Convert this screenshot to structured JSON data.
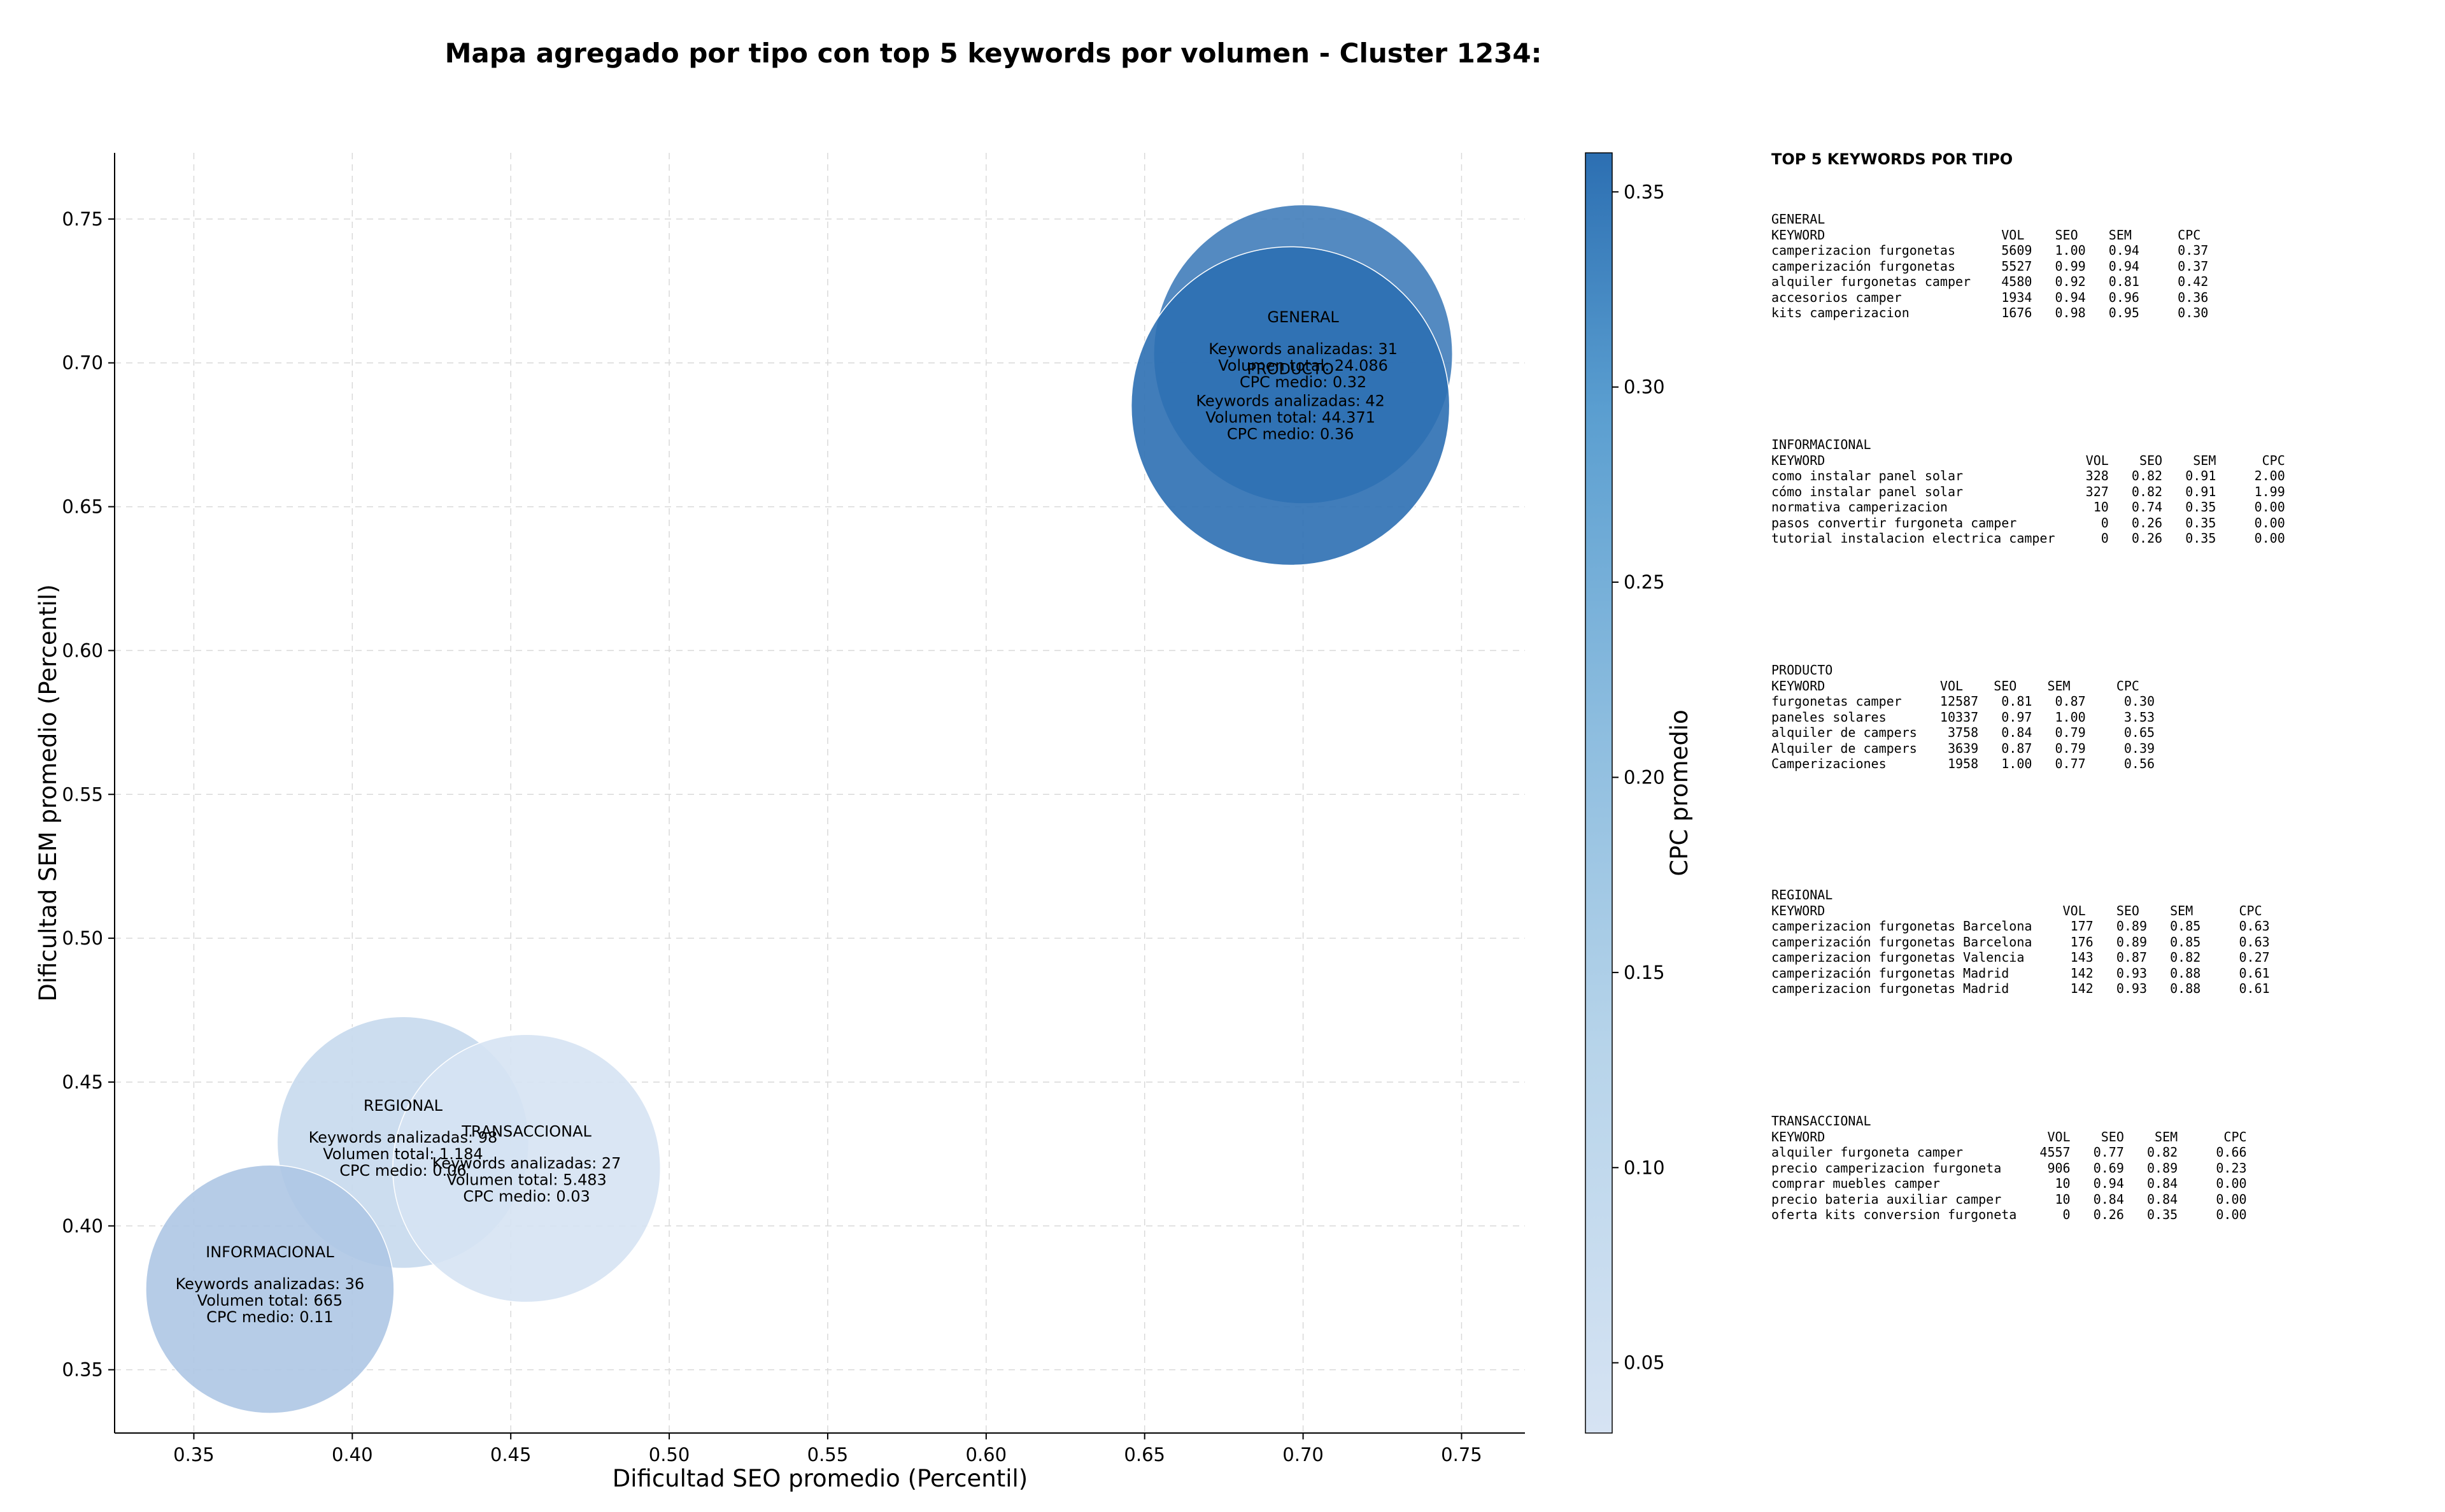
{
  "chart_data": {
    "type": "scatter",
    "title": "Mapa agregado por tipo con top 5 keywords por volumen - Cluster 1234:",
    "xlabel": "Dificultad SEO promedio (Percentil)",
    "ylabel": "Dificultad SEM promedio (Percentil)",
    "xlim": [
      0.325,
      0.77
    ],
    "ylim": [
      0.328,
      0.773
    ],
    "x_ticks": [
      "0.35",
      "0.40",
      "0.45",
      "0.50",
      "0.55",
      "0.60",
      "0.65",
      "0.70",
      "0.75"
    ],
    "y_ticks": [
      "0.35",
      "0.40",
      "0.45",
      "0.50",
      "0.55",
      "0.60",
      "0.65",
      "0.70",
      "0.75"
    ],
    "grid": true,
    "colorbar": {
      "label": "CPC promedio",
      "range": [
        0.032,
        0.36
      ],
      "ticks": [
        "0.05",
        "0.10",
        "0.15",
        "0.20",
        "0.25",
        "0.30",
        "0.35"
      ],
      "color_low": "#d6e3f3",
      "color_high": "#2c6fb2"
    },
    "bubbles": [
      {
        "tipo": "REGIONAL",
        "x": 0.416,
        "y": 0.429,
        "keywords_label": "Keywords analizadas: 98",
        "volume_label": "Volumen total: 1.184",
        "cpc_label": "CPC medio: 0.06",
        "cpc": 0.06,
        "keywords": 98,
        "volume": 1184
      },
      {
        "tipo": "TRANSACCIONAL",
        "x": 0.455,
        "y": 0.42,
        "keywords_label": "Keywords analizadas: 27",
        "volume_label": "Volumen total: 5.483",
        "cpc_label": "CPC medio: 0.03",
        "cpc": 0.03,
        "keywords": 27,
        "volume": 5483
      },
      {
        "tipo": "INFORMACIONAL",
        "x": 0.374,
        "y": 0.378,
        "keywords_label": "Keywords analizadas: 36",
        "volume_label": "Volumen total: 665",
        "cpc_label": "CPC medio: 0.11",
        "cpc": 0.11,
        "keywords": 36,
        "volume": 665
      },
      {
        "tipo": "GENERAL",
        "x": 0.7,
        "y": 0.703,
        "keywords_label": "Keywords analizadas: 31",
        "volume_label": "Volumen total: 24.086",
        "cpc_label": "CPC medio: 0.32",
        "cpc": 0.32,
        "keywords": 31,
        "volume": 24086
      },
      {
        "tipo": "PRODUCTO",
        "x": 0.696,
        "y": 0.685,
        "keywords_label": "Keywords analizadas: 42",
        "volume_label": "Volumen total: 44.371",
        "cpc_label": "CPC medio: 0.36",
        "cpc": 0.36,
        "keywords": 42,
        "volume": 44371
      }
    ]
  },
  "keywords_panel": {
    "heading": "TOP 5 KEYWORDS POR TIPO",
    "blocks": [
      {
        "name": "GENERAL",
        "lines": [
          "KEYWORD                       VOL    SEO    SEM      CPC",
          "camperizacion furgonetas      5609   1.00   0.94     0.37",
          "camperización furgonetas      5527   0.99   0.94     0.37",
          "alquiler furgonetas camper    4580   0.92   0.81     0.42",
          "accesorios camper             1934   0.94   0.96     0.36",
          "kits camperizacion            1676   0.98   0.95     0.30"
        ]
      },
      {
        "name": "INFORMACIONAL",
        "lines": [
          "KEYWORD                                  VOL    SEO    SEM      CPC",
          "como instalar panel solar                328   0.82   0.91     2.00",
          "cómo instalar panel solar                327   0.82   0.91     1.99",
          "normativa camperizacion                   10   0.74   0.35     0.00",
          "pasos convertir furgoneta camper           0   0.26   0.35     0.00",
          "tutorial instalacion electrica camper      0   0.26   0.35     0.00"
        ]
      },
      {
        "name": "PRODUCTO",
        "lines": [
          "KEYWORD               VOL    SEO    SEM      CPC",
          "furgonetas camper     12587   0.81   0.87     0.30",
          "paneles solares       10337   0.97   1.00     3.53",
          "alquiler de campers    3758   0.84   0.79     0.65",
          "Alquiler de campers    3639   0.87   0.79     0.39",
          "Camperizaciones        1958   1.00   0.77     0.56"
        ]
      },
      {
        "name": "REGIONAL",
        "lines": [
          "KEYWORD                               VOL    SEO    SEM      CPC",
          "camperizacion furgonetas Barcelona     177   0.89   0.85     0.63",
          "camperización furgonetas Barcelona     176   0.89   0.85     0.63",
          "camperizacion furgonetas Valencia      143   0.87   0.82     0.27",
          "camperización furgonetas Madrid        142   0.93   0.88     0.61",
          "camperizacion furgonetas Madrid        142   0.93   0.88     0.61"
        ]
      },
      {
        "name": "TRANSACCIONAL",
        "lines": [
          "KEYWORD                             VOL    SEO    SEM      CPC",
          "alquiler furgoneta camper          4557   0.77   0.82     0.66",
          "precio camperizacion furgoneta      906   0.69   0.89     0.23",
          "comprar muebles camper               10   0.94   0.84     0.00",
          "precio bateria auxiliar camper       10   0.84   0.84     0.00",
          "oferta kits conversion furgoneta      0   0.26   0.35     0.00"
        ]
      }
    ]
  }
}
